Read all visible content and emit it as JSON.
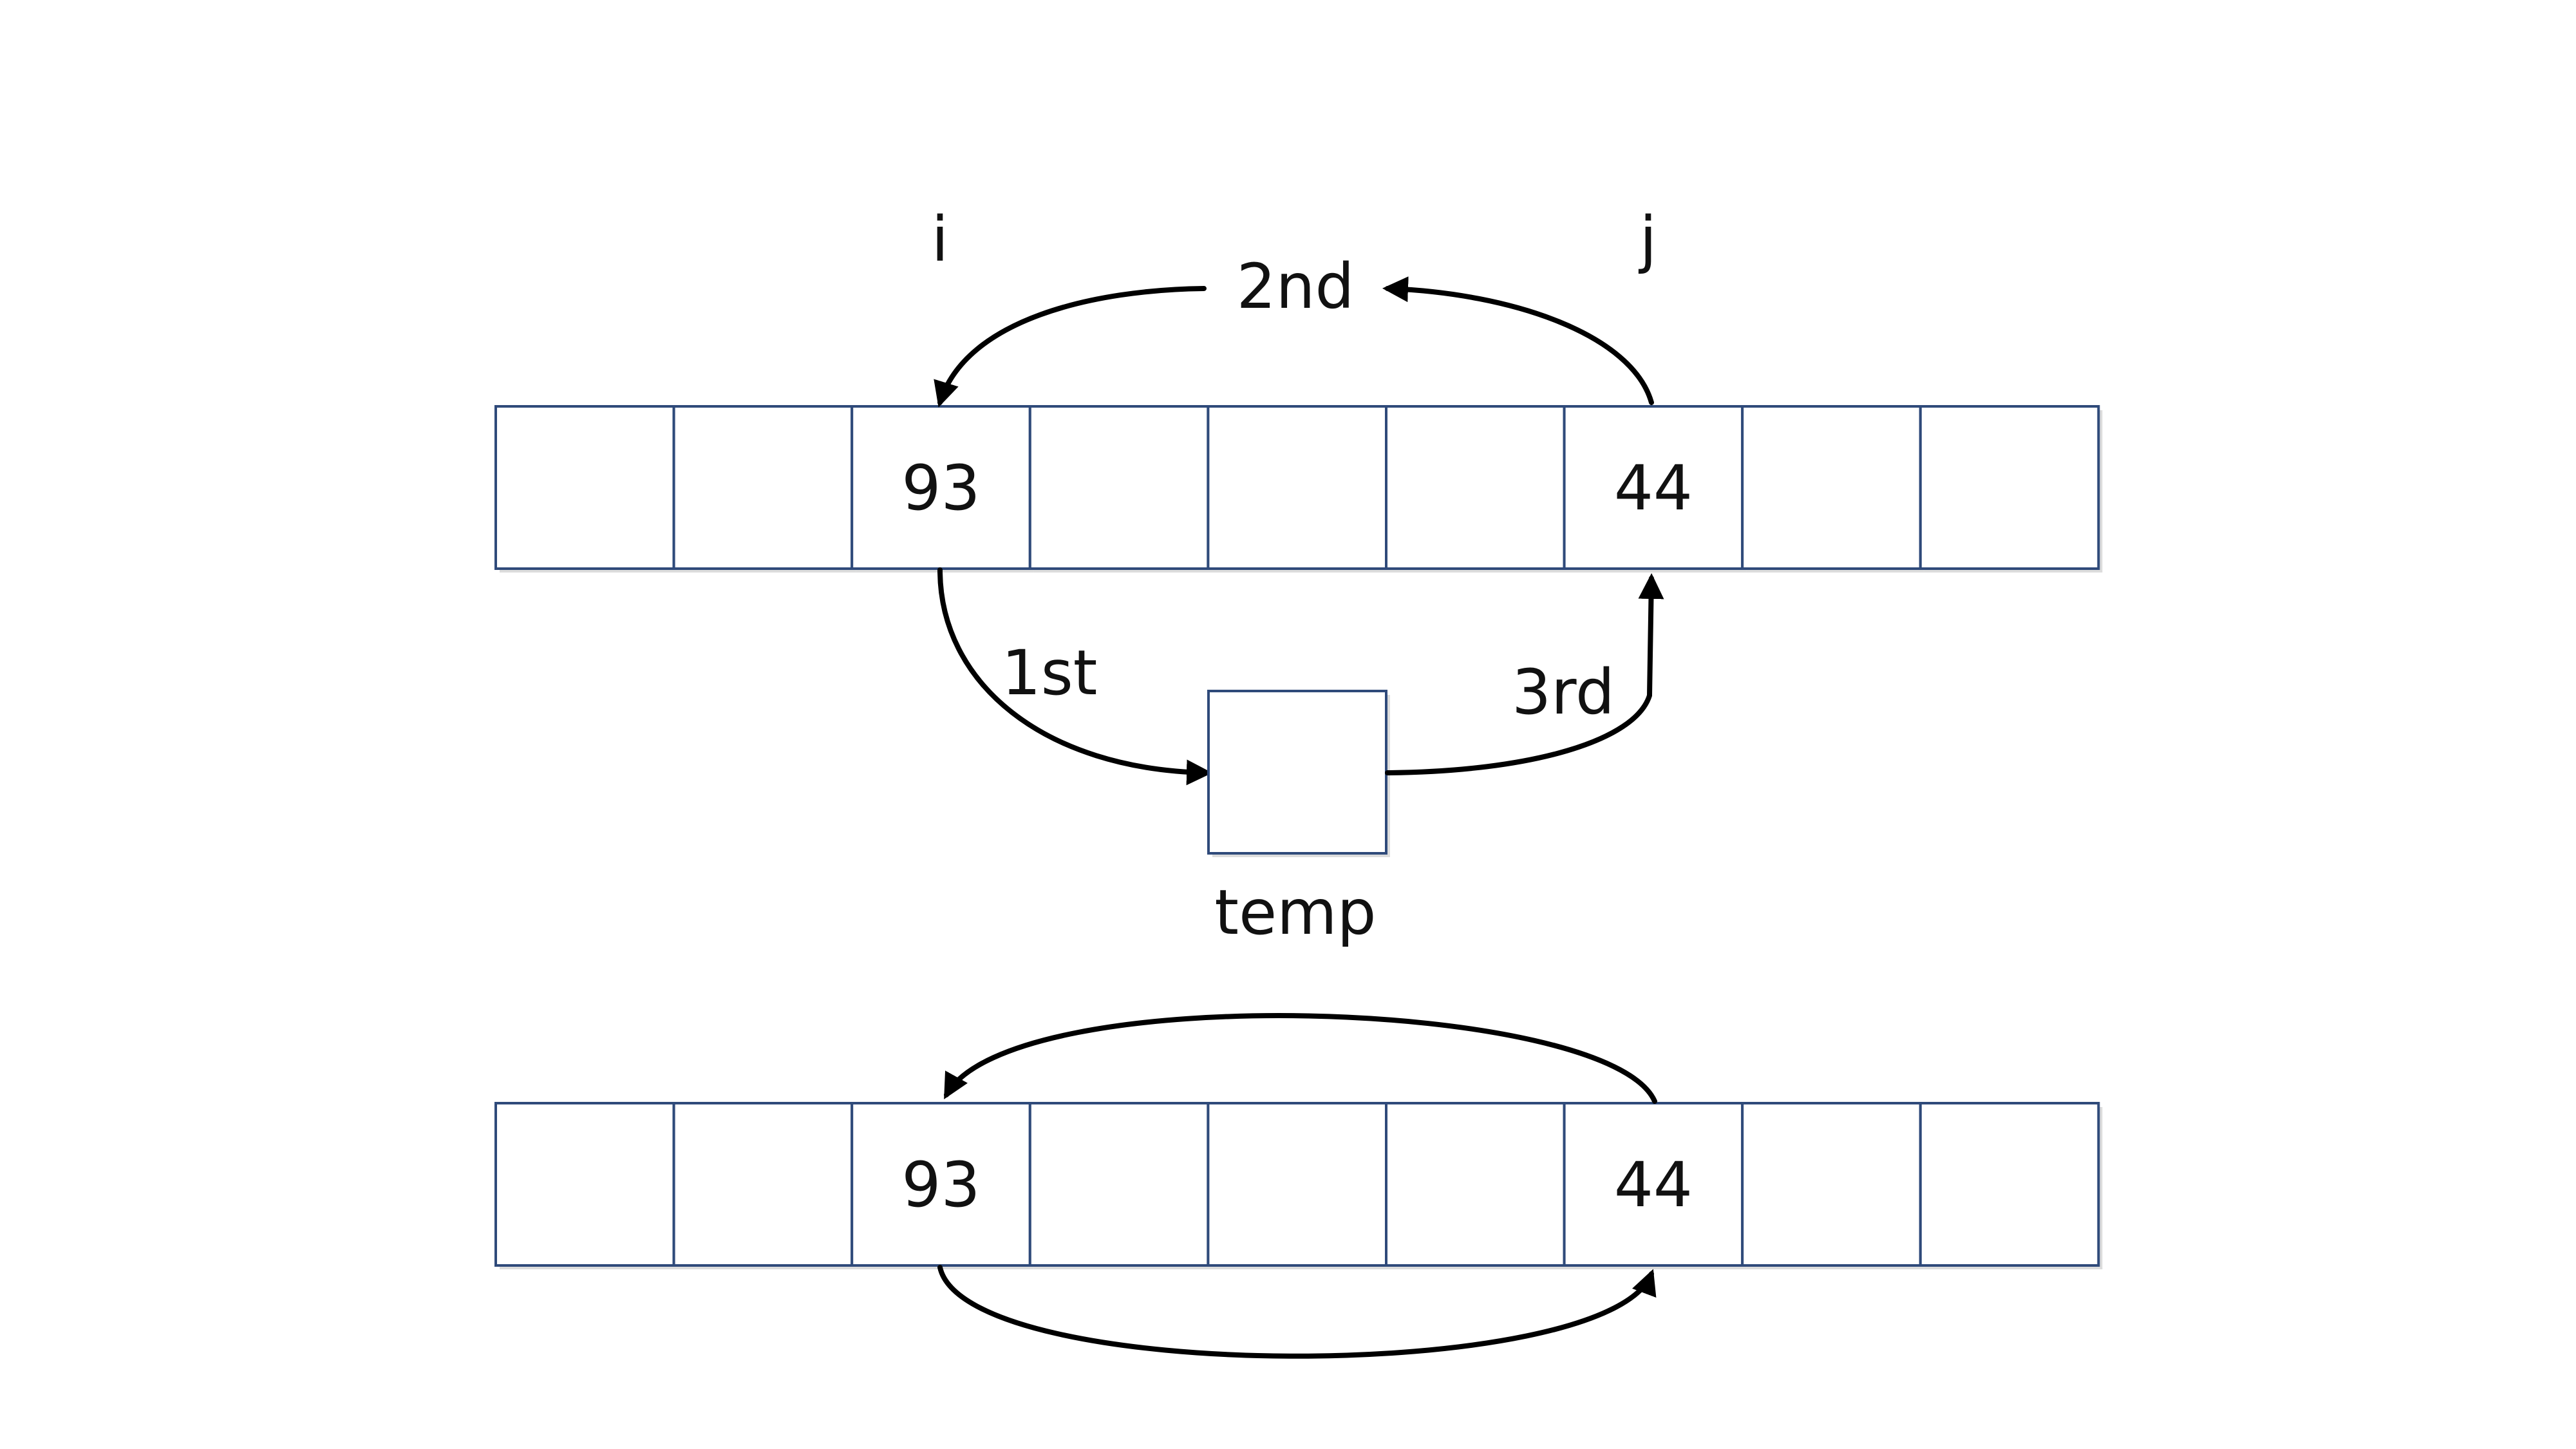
{
  "top_array": {
    "cells": [
      "",
      "",
      "93",
      "",
      "",
      "",
      "44",
      "",
      ""
    ]
  },
  "bottom_array": {
    "cells": [
      "",
      "",
      "93",
      "",
      "",
      "",
      "44",
      "",
      ""
    ]
  },
  "labels": {
    "i": "i",
    "j": "j",
    "step_first": "1st",
    "step_second": "2nd",
    "step_third": "3rd",
    "temp": "temp"
  }
}
